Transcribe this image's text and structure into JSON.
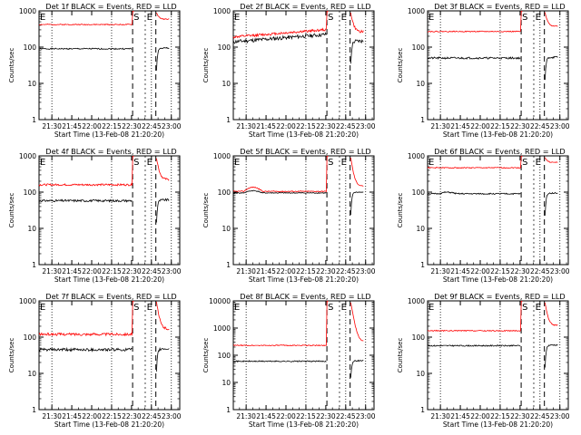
{
  "figure": {
    "ylabel": "Counts/sec",
    "xlabel": "Start Time (13-Feb-08 21:20:20)",
    "x_tick_labels": [
      "21:30",
      "21:45",
      "22:00",
      "22:15",
      "22:30",
      "22:45",
      "23:00"
    ],
    "y_tick_labels_3": [
      "1",
      "10",
      "100",
      "1000"
    ],
    "y_tick_labels_4": [
      "1",
      "10",
      "100",
      "1000",
      "10000"
    ],
    "marker_labels": {
      "start": "S",
      "end": "E"
    },
    "colors": {
      "events": "#000000",
      "lld": "#ff0000",
      "axes": "#000000"
    }
  },
  "chart_data": [
    {
      "type": "line",
      "title": "Det 1f BLACK = Events, RED = LLD",
      "ylim": [
        1,
        1000
      ],
      "yscale": "log",
      "xlim_min": [
        0,
        100
      ],
      "series": [
        {
          "name": "Events",
          "level": 90,
          "noise": 0.04
        },
        {
          "name": "LLD",
          "level": 420,
          "noise": 0.03
        }
      ]
    },
    {
      "type": "line",
      "title": "Det 2f BLACK = Events, RED = LLD",
      "ylim": [
        1,
        1000
      ],
      "yscale": "log",
      "xlim_min": [
        0,
        100
      ],
      "series": [
        {
          "name": "Events",
          "level": 140,
          "noise": 0.12,
          "trend": 1.6
        },
        {
          "name": "LLD",
          "level": 190,
          "noise": 0.08,
          "trend": 1.6
        }
      ]
    },
    {
      "type": "line",
      "title": "Det 3f BLACK = Events, RED = LLD",
      "ylim": [
        1,
        1000
      ],
      "yscale": "log",
      "xlim_min": [
        0,
        100
      ],
      "series": [
        {
          "name": "Events",
          "level": 50,
          "noise": 0.06
        },
        {
          "name": "LLD",
          "level": 270,
          "noise": 0.03
        }
      ]
    },
    {
      "type": "line",
      "title": "Det 4f BLACK = Events, RED = LLD",
      "ylim": [
        1,
        1000
      ],
      "yscale": "log",
      "xlim_min": [
        0,
        100
      ],
      "series": [
        {
          "name": "Events",
          "level": 58,
          "noise": 0.07
        },
        {
          "name": "LLD",
          "level": 160,
          "noise": 0.06
        }
      ]
    },
    {
      "type": "line",
      "title": "Det 5f BLACK = Events, RED = LLD",
      "ylim": [
        1,
        1000
      ],
      "yscale": "log",
      "xlim_min": [
        0,
        100
      ],
      "series": [
        {
          "name": "Events",
          "level": 95,
          "noise": 0.03,
          "bump": 1.15
        },
        {
          "name": "LLD",
          "level": 105,
          "noise": 0.03,
          "bump": 1.3
        }
      ]
    },
    {
      "type": "line",
      "title": "Det 6f BLACK = Events, RED = LLD",
      "ylim": [
        1,
        1000
      ],
      "yscale": "log",
      "xlim_min": [
        0,
        100
      ],
      "series": [
        {
          "name": "Events",
          "level": 90,
          "noise": 0.04,
          "bump": 1.1
        },
        {
          "name": "LLD",
          "level": 470,
          "noise": 0.03
        }
      ]
    },
    {
      "type": "line",
      "title": "Det 7f BLACK = Events, RED = LLD",
      "ylim": [
        1,
        1000
      ],
      "yscale": "log",
      "xlim_min": [
        0,
        100
      ],
      "series": [
        {
          "name": "Events",
          "level": 45,
          "noise": 0.09
        },
        {
          "name": "LLD",
          "level": 120,
          "noise": 0.08
        }
      ]
    },
    {
      "type": "line",
      "title": "Det 8f BLACK = Events, RED = LLD",
      "ylim": [
        1,
        10000
      ],
      "yscale": "log",
      "xlim_min": [
        0,
        100
      ],
      "series": [
        {
          "name": "Events",
          "level": 60,
          "noise": 0.05
        },
        {
          "name": "LLD",
          "level": 230,
          "noise": 0.04
        }
      ]
    },
    {
      "type": "line",
      "title": "Det 9f BLACK = Events, RED = LLD",
      "ylim": [
        1,
        1000
      ],
      "yscale": "log",
      "xlim_min": [
        0,
        100
      ],
      "series": [
        {
          "name": "Events",
          "level": 58,
          "noise": 0.04
        },
        {
          "name": "LLD",
          "level": 150,
          "noise": 0.03
        }
      ]
    }
  ]
}
